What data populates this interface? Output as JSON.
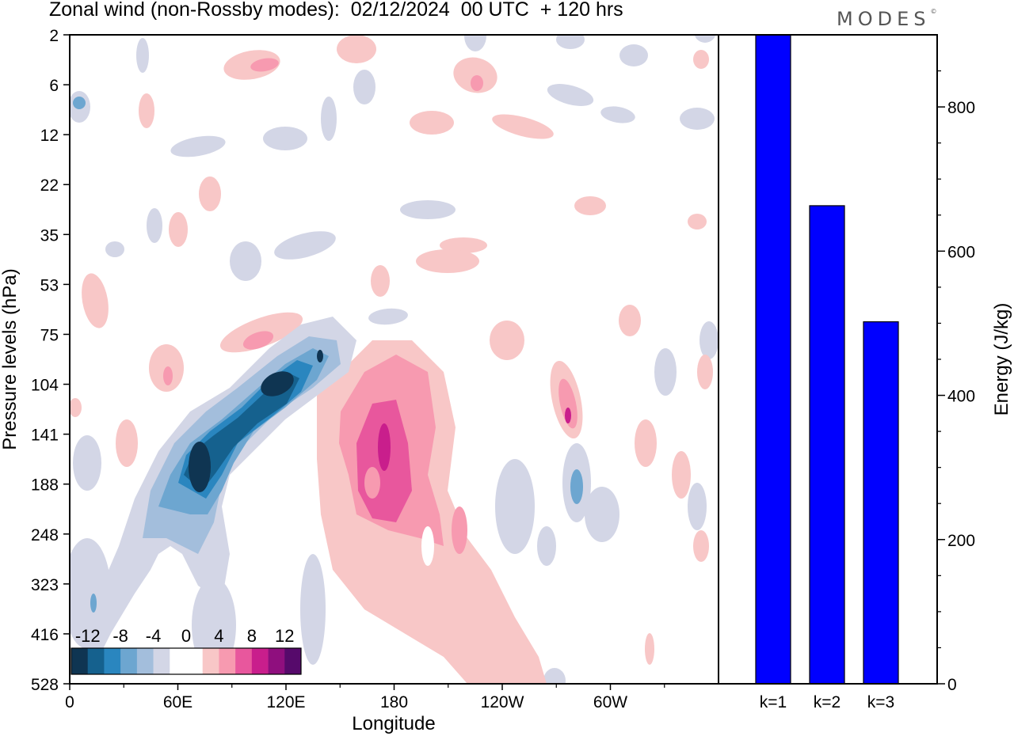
{
  "chart_data": [
    {
      "type": "heatmap",
      "title": "Zonal wind (non-Rossby modes):  02/12/2024  00 UTC  + 120 hrs",
      "xlabel": "Longitude",
      "ylabel": "Pressure levels (hPa)",
      "x_ticks": [
        "0",
        "60E",
        "120E",
        "180",
        "120W",
        "60W"
      ],
      "x_tick_values": [
        0,
        60,
        120,
        180,
        240,
        300
      ],
      "xlim": [
        0,
        360
      ],
      "y_ticks": [
        "2",
        "6",
        "12",
        "22",
        "35",
        "53",
        "75",
        "104",
        "141",
        "188",
        "248",
        "323",
        "416",
        "528"
      ],
      "colorbar": {
        "labels": [
          "-12",
          "-8",
          "-4",
          "0",
          "4",
          "8",
          "12"
        ],
        "colors": [
          "#0f3552",
          "#15618e",
          "#2a86bf",
          "#6da6d0",
          "#a3bedc",
          "#d3d6e6",
          "#ffffff",
          "#ffffff",
          "#f8c7c7",
          "#f79ab0",
          "#e8579d",
          "#c91e8c",
          "#8f0f7e",
          "#560a6b"
        ]
      },
      "features": [
        {
          "name": "negative jet core",
          "lon_center": 72,
          "level_center": "165",
          "min_value": -14
        },
        {
          "name": "negative upper core",
          "lon_center": 112,
          "level_center": "112",
          "min_value": -13
        },
        {
          "name": "positive core",
          "lon_center": 172,
          "level_center": "160",
          "max_value": 11
        },
        {
          "name": "positive small core",
          "lon_center": 277,
          "level_center": "125",
          "max_value": 8
        }
      ]
    },
    {
      "type": "bar",
      "categories": [
        "k=1",
        "k=2",
        "k=3"
      ],
      "values": [
        900,
        663,
        502
      ],
      "ylabel": "Energy (J/kg)",
      "ylim": [
        0,
        900
      ],
      "y_ticks": [
        0,
        200,
        400,
        600,
        800
      ],
      "bar_color": "#0000ff"
    }
  ],
  "logo_text": "MODES",
  "logo_mark": "©"
}
